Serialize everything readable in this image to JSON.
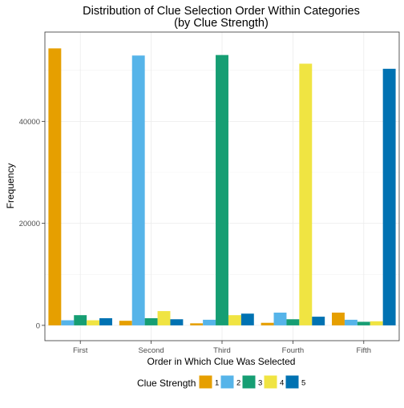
{
  "chart_data": {
    "type": "bar",
    "title": "Distribution of Clue Selection Order Within Categories",
    "subtitle": "(by Clue Strength)",
    "xlabel": "Order in Which Clue Was Selected",
    "ylabel": "Frequency",
    "categories": [
      "First",
      "Second",
      "Third",
      "Fourth",
      "Fifth"
    ],
    "y_ticks": [
      0,
      20000,
      40000
    ],
    "ylim": [
      -3000,
      57500
    ],
    "grid": true,
    "legend": {
      "title": "Clue Strength",
      "position": "bottom"
    },
    "series": [
      {
        "name": "1",
        "color": "#E69F00",
        "values": [
          54300,
          900,
          400,
          500,
          2500
        ]
      },
      {
        "name": "2",
        "color": "#56B4E9",
        "values": [
          1000,
          52900,
          1100,
          2500,
          1100
        ]
      },
      {
        "name": "3",
        "color": "#169E73",
        "values": [
          2000,
          1400,
          53000,
          1200,
          700
        ]
      },
      {
        "name": "4",
        "color": "#F0E442",
        "values": [
          1000,
          2800,
          2000,
          51300,
          800
        ]
      },
      {
        "name": "5",
        "color": "#0072B2",
        "values": [
          1400,
          1200,
          2300,
          1700,
          50300
        ]
      }
    ]
  }
}
